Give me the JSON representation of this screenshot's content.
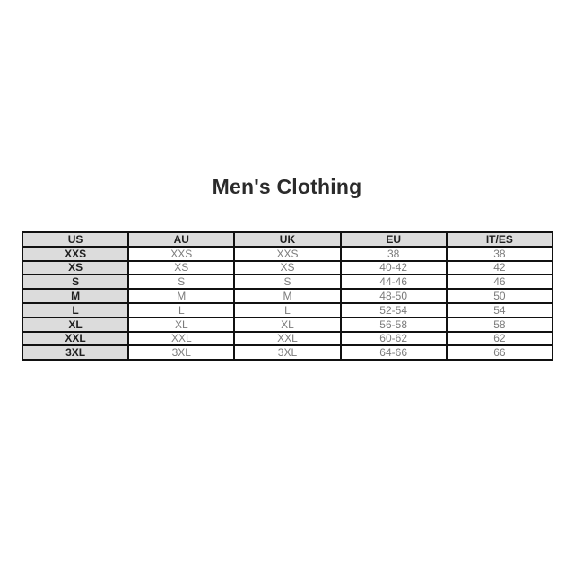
{
  "page": {
    "title": "Men's Clothing"
  },
  "colors": {
    "header_bg": "#dcdcdc",
    "border": "#111111",
    "header_text": "#1f1f1f",
    "cell_text": "#7b7b7b",
    "title_text": "#2b2b2b",
    "page_bg": "#ffffff"
  },
  "table": {
    "headers": [
      "US",
      "AU",
      "UK",
      "EU",
      "IT/ES"
    ],
    "rows": [
      [
        "XXS",
        "XXS",
        "XXS",
        "38",
        "38"
      ],
      [
        "XS",
        "XS",
        "XS",
        "40-42",
        "42"
      ],
      [
        "S",
        "S",
        "S",
        "44-46",
        "46"
      ],
      [
        "M",
        "M",
        "M",
        "48-50",
        "50"
      ],
      [
        "L",
        "L",
        "L",
        "52-54",
        "54"
      ],
      [
        "XL",
        "XL",
        "XL",
        "56-58",
        "58"
      ],
      [
        "XXL",
        "XXL",
        "XXL",
        "60-62",
        "62"
      ],
      [
        "3XL",
        "3XL",
        "3XL",
        "64-66",
        "66"
      ]
    ]
  },
  "chart_data": {
    "type": "table",
    "title": "Men's Clothing",
    "columns": [
      "US",
      "AU",
      "UK",
      "EU",
      "IT/ES"
    ],
    "rows": [
      [
        "XXS",
        "XXS",
        "XXS",
        "38",
        "38"
      ],
      [
        "XS",
        "XS",
        "XS",
        "40-42",
        "42"
      ],
      [
        "S",
        "S",
        "S",
        "44-46",
        "46"
      ],
      [
        "M",
        "M",
        "M",
        "48-50",
        "50"
      ],
      [
        "L",
        "L",
        "L",
        "52-54",
        "54"
      ],
      [
        "XL",
        "XL",
        "XL",
        "56-58",
        "58"
      ],
      [
        "XXL",
        "XXL",
        "XXL",
        "60-62",
        "62"
      ],
      [
        "3XL",
        "3XL",
        "3XL",
        "64-66",
        "66"
      ]
    ],
    "layout_hints": {
      "header_row_shaded": true,
      "first_column_shaded": true,
      "grid": true,
      "title_position": "above-center"
    }
  }
}
